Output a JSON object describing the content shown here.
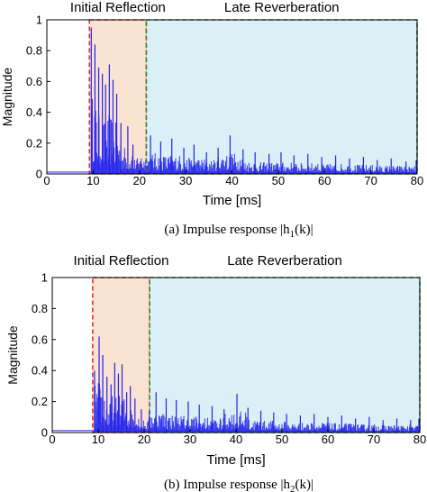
{
  "chart_data": [
    {
      "type": "line",
      "caption": "(a) Impulse response |h1(k)|",
      "xlabel": "Time [ms]",
      "ylabel": "Magnitude",
      "xlim": [
        0,
        80
      ],
      "ylim": [
        0,
        1
      ],
      "xticks": [
        "0",
        "10",
        "20",
        "30",
        "40",
        "50",
        "60",
        "70",
        "80"
      ],
      "yticks": [
        "0",
        "0.2",
        "0.4",
        "0.6",
        "0.8",
        "1"
      ],
      "regions": [
        {
          "label": "Initial Reflection",
          "start": 9.2,
          "end": 21.5,
          "fill": "#fbe3d2",
          "border": "#e03030"
        },
        {
          "label": "Late Reverberation",
          "start": 21.5,
          "end": 80,
          "fill": "#dbeff6",
          "border": "#2e8b2e"
        }
      ],
      "line_color": "#2222ee",
      "peaks": [
        [
          9.6,
          0.95
        ],
        [
          10.4,
          0.84
        ],
        [
          11.2,
          0.69
        ],
        [
          12.0,
          0.65
        ],
        [
          12.7,
          0.58
        ],
        [
          13.5,
          0.71
        ],
        [
          14.3,
          0.61
        ],
        [
          15.1,
          0.52
        ],
        [
          16.0,
          0.33
        ],
        [
          17.5,
          0.31
        ],
        [
          18.6,
          0.19
        ],
        [
          20.2,
          0.08
        ],
        [
          22.4,
          0.25
        ],
        [
          24.6,
          0.21
        ],
        [
          27.0,
          0.23
        ],
        [
          29.6,
          0.17
        ],
        [
          31.8,
          0.19
        ],
        [
          34.5,
          0.14
        ],
        [
          37.0,
          0.17
        ],
        [
          39.6,
          0.25
        ],
        [
          42.4,
          0.16
        ],
        [
          45.0,
          0.14
        ],
        [
          48.0,
          0.13
        ],
        [
          50.6,
          0.14
        ],
        [
          53.4,
          0.12
        ],
        [
          56.4,
          0.13
        ],
        [
          59.4,
          0.11
        ],
        [
          62.4,
          0.12
        ],
        [
          65.4,
          0.1
        ],
        [
          68.4,
          0.11
        ],
        [
          71.4,
          0.09
        ],
        [
          74.4,
          0.1
        ],
        [
          77.6,
          0.08
        ],
        [
          79.8,
          0.09
        ]
      ]
    },
    {
      "type": "line",
      "caption": "(b) Impulse response |h2(k)|",
      "xlabel": "Time [ms]",
      "ylabel": "Magnitude",
      "xlim": [
        0,
        80
      ],
      "ylim": [
        0,
        1
      ],
      "xticks": [
        "0",
        "10",
        "20",
        "30",
        "40",
        "50",
        "60",
        "70",
        "80"
      ],
      "yticks": [
        "0",
        "0.2",
        "0.4",
        "0.6",
        "0.8",
        "1"
      ],
      "regions": [
        {
          "label": "Initial Reflection",
          "start": 8.8,
          "end": 21.2,
          "fill": "#fbe3d2",
          "border": "#e03030"
        },
        {
          "label": "Late Reverberation",
          "start": 21.2,
          "end": 80,
          "fill": "#dbeff6",
          "border": "#2e8b2e"
        }
      ],
      "line_color": "#2222ee",
      "peaks": [
        [
          9.2,
          0.4
        ],
        [
          10.2,
          0.62
        ],
        [
          11.0,
          0.5
        ],
        [
          11.9,
          0.36
        ],
        [
          12.8,
          0.31
        ],
        [
          13.6,
          0.45
        ],
        [
          14.4,
          0.38
        ],
        [
          15.2,
          0.44
        ],
        [
          16.2,
          0.26
        ],
        [
          17.0,
          0.3
        ],
        [
          18.0,
          0.22
        ],
        [
          19.4,
          0.15
        ],
        [
          21.0,
          0.08
        ],
        [
          22.6,
          0.26
        ],
        [
          24.8,
          0.22
        ],
        [
          27.0,
          0.21
        ],
        [
          29.6,
          0.2
        ],
        [
          32.0,
          0.18
        ],
        [
          34.8,
          0.17
        ],
        [
          37.4,
          0.15
        ],
        [
          40.2,
          0.25
        ],
        [
          42.6,
          0.16
        ],
        [
          45.4,
          0.14
        ],
        [
          48.2,
          0.13
        ],
        [
          51.0,
          0.12
        ],
        [
          54.0,
          0.11
        ],
        [
          57.0,
          0.12
        ],
        [
          60.0,
          0.1
        ],
        [
          63.0,
          0.11
        ],
        [
          66.0,
          0.09
        ],
        [
          69.0,
          0.1
        ],
        [
          72.0,
          0.08
        ],
        [
          75.0,
          0.09
        ],
        [
          78.0,
          0.08
        ],
        [
          79.8,
          0.09
        ]
      ]
    }
  ]
}
